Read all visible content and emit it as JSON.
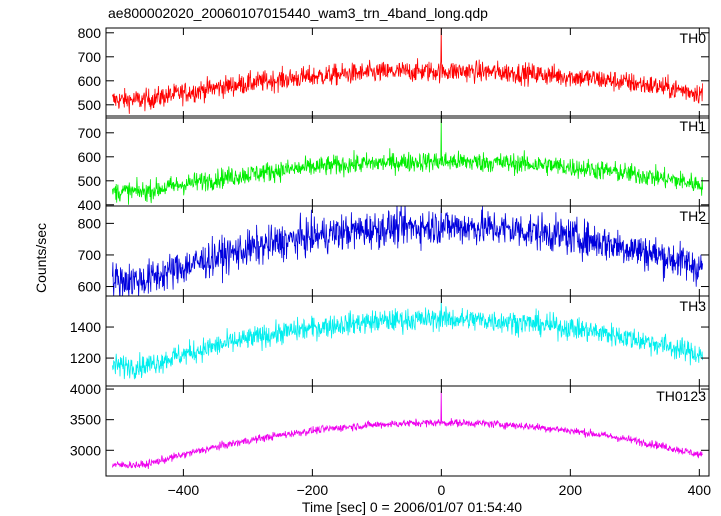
{
  "chart_data": {
    "type": "line",
    "title": "ae800002020_20060107015440_wam3_trn_4band_long.qdp",
    "xlabel": "Time [sec] 0 = 2006/01/07 01:54:40",
    "ylabel": "Counts/sec",
    "xlim": [
      -520,
      415
    ],
    "x_ticks": [
      -400,
      -200,
      0,
      200,
      400
    ],
    "x_tick_labels": [
      "−400",
      "−200",
      "0",
      "200",
      "400"
    ],
    "grid": false,
    "panels": [
      {
        "name": "TH0",
        "color": "#ff0000",
        "ylim": [
          445,
          820
        ],
        "y_ticks": [
          500,
          600,
          700,
          800
        ],
        "y_tick_labels": [
          "500",
          "600",
          "700",
          "800"
        ],
        "x_range": [
          -510,
          405
        ],
        "profile": {
          "base": 520,
          "peak": 640,
          "noise": 42
        },
        "spike": {
          "x": 0,
          "value": 820
        }
      },
      {
        "name": "TH1",
        "color": "#00ee00",
        "ylim": [
          395,
          770
        ],
        "y_ticks": [
          400,
          500,
          600,
          700
        ],
        "y_tick_labels": [
          "400",
          "500",
          "600",
          "700"
        ],
        "x_range": [
          -510,
          405
        ],
        "profile": {
          "base": 455,
          "peak": 580,
          "noise": 40
        },
        "spike": {
          "x": 0,
          "value": 760
        }
      },
      {
        "name": "TH2",
        "color": "#0000dd",
        "ylim": [
          570,
          855
        ],
        "y_ticks": [
          600,
          700,
          800
        ],
        "y_tick_labels": [
          "600",
          "700",
          "800"
        ],
        "x_range": [
          -510,
          405
        ],
        "profile": {
          "base": 620,
          "peak": 790,
          "noise": 55
        },
        "spike": {
          "x": 0,
          "value": 850
        }
      },
      {
        "name": "TH3",
        "color": "#00eeee",
        "ylim": [
          1020,
          1600
        ],
        "y_ticks": [
          1200,
          1400
        ],
        "y_tick_labels": [
          "1200",
          "1400"
        ],
        "x_range": [
          -510,
          405
        ],
        "profile": {
          "base": 1150,
          "peak": 1450,
          "noise": 70
        },
        "spike": {
          "x": 0,
          "value": 1560
        }
      },
      {
        "name": "TH0123",
        "color": "#ee00ee",
        "ylim": [
          2580,
          4050
        ],
        "y_ticks": [
          3000,
          3500,
          4000
        ],
        "y_tick_labels": [
          "3000",
          "3500",
          "4000"
        ],
        "x_range": [
          -510,
          405
        ],
        "profile": {
          "base": 2760,
          "peak": 3450,
          "noise": 60
        },
        "spike": {
          "x": 0,
          "value": 3970
        }
      }
    ]
  }
}
